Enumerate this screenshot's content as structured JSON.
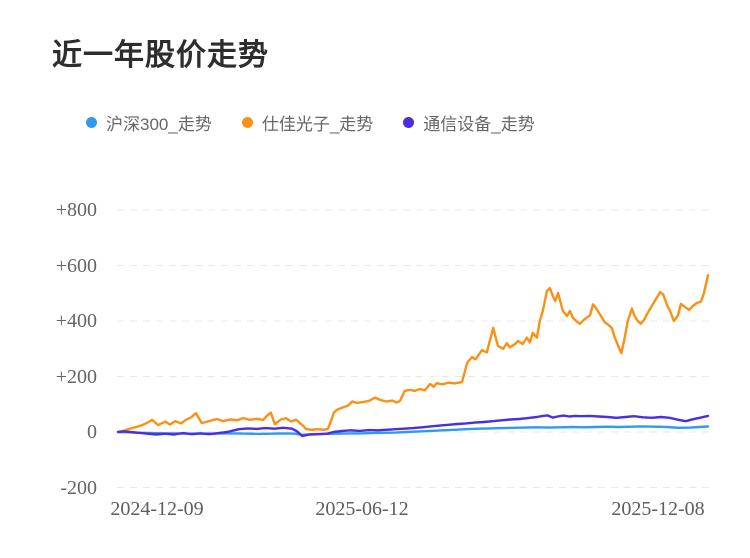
{
  "title": "近一年股价走势",
  "axes": {
    "y_ticks": [
      "+800",
      "+600",
      "+400",
      "+200",
      "0",
      "-200"
    ],
    "y_values": [
      800,
      600,
      400,
      200,
      0,
      -200
    ],
    "x_ticks": [
      "2024-12-09",
      "2025-06-12",
      "2025-12-08"
    ]
  },
  "colors": {
    "grid": "#e8e8e8",
    "background": "#ffffff",
    "title_text": "#2d2d2d",
    "legend_text": "#666666",
    "axis_text": "#646464"
  },
  "chart_data": {
    "type": "line",
    "title": "近一年股价走势",
    "ylim": [
      -200,
      800
    ],
    "grid": "dashed-horizontal",
    "legend_position": "top-left",
    "x_tick_labels": [
      "2024-12-09",
      "2025-06-12",
      "2025-12-08"
    ],
    "x_range_note": "x is fraction of time axis from 2024-12-09 (0) to 2025-12-08 (1)",
    "unit": "percent change",
    "series": [
      {
        "name": "沪深300_走势",
        "color": "#2f9bf0",
        "points": [
          [
            0,
            0
          ],
          [
            0.02,
            -1
          ],
          [
            0.04,
            -3
          ],
          [
            0.06,
            -4
          ],
          [
            0.08,
            -5
          ],
          [
            0.1,
            -5
          ],
          [
            0.12,
            -6
          ],
          [
            0.14,
            -5
          ],
          [
            0.16,
            -6
          ],
          [
            0.18,
            -5
          ],
          [
            0.2,
            -5
          ],
          [
            0.22,
            -6
          ],
          [
            0.24,
            -7
          ],
          [
            0.26,
            -6
          ],
          [
            0.28,
            -5
          ],
          [
            0.3,
            -6
          ],
          [
            0.312,
            -10
          ],
          [
            0.33,
            -8
          ],
          [
            0.35,
            -7
          ],
          [
            0.37,
            -6
          ],
          [
            0.39,
            -5
          ],
          [
            0.41,
            -5
          ],
          [
            0.43,
            -4
          ],
          [
            0.45,
            -3
          ],
          [
            0.47,
            -2
          ],
          [
            0.49,
            0
          ],
          [
            0.51,
            2
          ],
          [
            0.53,
            4
          ],
          [
            0.55,
            6
          ],
          [
            0.57,
            8
          ],
          [
            0.59,
            10
          ],
          [
            0.61,
            12
          ],
          [
            0.63,
            13
          ],
          [
            0.65,
            14
          ],
          [
            0.67,
            15
          ],
          [
            0.69,
            16
          ],
          [
            0.71,
            17
          ],
          [
            0.73,
            16
          ],
          [
            0.75,
            17
          ],
          [
            0.77,
            18
          ],
          [
            0.79,
            17
          ],
          [
            0.81,
            18
          ],
          [
            0.83,
            19
          ],
          [
            0.85,
            18
          ],
          [
            0.87,
            19
          ],
          [
            0.89,
            20
          ],
          [
            0.91,
            19
          ],
          [
            0.93,
            18
          ],
          [
            0.95,
            15
          ],
          [
            0.97,
            16
          ],
          [
            0.985,
            18
          ],
          [
            1,
            20
          ]
        ]
      },
      {
        "name": "仕佳光子_走势",
        "color": "#fb9016",
        "points": [
          [
            0,
            0
          ],
          [
            0.01,
            5
          ],
          [
            0.02,
            12
          ],
          [
            0.031,
            18
          ],
          [
            0.041,
            25
          ],
          [
            0.051,
            35
          ],
          [
            0.058,
            44
          ],
          [
            0.068,
            25
          ],
          [
            0.08,
            37
          ],
          [
            0.088,
            27
          ],
          [
            0.097,
            39
          ],
          [
            0.107,
            31
          ],
          [
            0.115,
            44
          ],
          [
            0.124,
            53
          ],
          [
            0.132,
            68
          ],
          [
            0.142,
            32
          ],
          [
            0.156,
            40
          ],
          [
            0.168,
            47
          ],
          [
            0.178,
            39
          ],
          [
            0.19,
            45
          ],
          [
            0.202,
            42
          ],
          [
            0.212,
            50
          ],
          [
            0.224,
            44
          ],
          [
            0.236,
            48
          ],
          [
            0.246,
            43
          ],
          [
            0.254,
            62
          ],
          [
            0.259,
            70
          ],
          [
            0.266,
            28
          ],
          [
            0.276,
            45
          ],
          [
            0.285,
            50
          ],
          [
            0.293,
            38
          ],
          [
            0.302,
            44
          ],
          [
            0.308,
            33
          ],
          [
            0.314,
            22
          ],
          [
            0.319,
            10
          ],
          [
            0.329,
            8
          ],
          [
            0.339,
            10
          ],
          [
            0.349,
            8
          ],
          [
            0.356,
            12
          ],
          [
            0.361,
            40
          ],
          [
            0.366,
            70
          ],
          [
            0.371,
            80
          ],
          [
            0.38,
            88
          ],
          [
            0.39,
            95
          ],
          [
            0.397,
            110
          ],
          [
            0.405,
            105
          ],
          [
            0.415,
            108
          ],
          [
            0.425,
            112
          ],
          [
            0.436,
            124
          ],
          [
            0.445,
            115
          ],
          [
            0.455,
            110
          ],
          [
            0.465,
            113
          ],
          [
            0.472,
            106
          ],
          [
            0.478,
            112
          ],
          [
            0.486,
            148
          ],
          [
            0.495,
            152
          ],
          [
            0.503,
            148
          ],
          [
            0.512,
            155
          ],
          [
            0.52,
            150
          ],
          [
            0.529,
            173
          ],
          [
            0.535,
            163
          ],
          [
            0.54,
            176
          ],
          [
            0.55,
            172
          ],
          [
            0.56,
            178
          ],
          [
            0.57,
            175
          ],
          [
            0.583,
            180
          ],
          [
            0.592,
            250
          ],
          [
            0.6,
            270
          ],
          [
            0.606,
            262
          ],
          [
            0.617,
            295
          ],
          [
            0.625,
            287
          ],
          [
            0.636,
            375
          ],
          [
            0.644,
            310
          ],
          [
            0.653,
            300
          ],
          [
            0.659,
            320
          ],
          [
            0.664,
            305
          ],
          [
            0.673,
            317
          ],
          [
            0.678,
            328
          ],
          [
            0.686,
            317
          ],
          [
            0.693,
            340
          ],
          [
            0.698,
            323
          ],
          [
            0.703,
            357
          ],
          [
            0.71,
            340
          ],
          [
            0.715,
            400
          ],
          [
            0.72,
            436
          ],
          [
            0.727,
            508
          ],
          [
            0.732,
            519
          ],
          [
            0.737,
            490
          ],
          [
            0.741,
            472
          ],
          [
            0.746,
            501
          ],
          [
            0.754,
            436
          ],
          [
            0.761,
            418
          ],
          [
            0.766,
            436
          ],
          [
            0.771,
            412
          ],
          [
            0.78,
            394
          ],
          [
            0.783,
            390
          ],
          [
            0.79,
            405
          ],
          [
            0.8,
            420
          ],
          [
            0.805,
            460
          ],
          [
            0.81,
            447
          ],
          [
            0.818,
            420
          ],
          [
            0.825,
            395
          ],
          [
            0.83,
            388
          ],
          [
            0.837,
            375
          ],
          [
            0.842,
            340
          ],
          [
            0.853,
            284
          ],
          [
            0.858,
            330
          ],
          [
            0.864,
            400
          ],
          [
            0.868,
            425
          ],
          [
            0.871,
            445
          ],
          [
            0.875,
            420
          ],
          [
            0.881,
            400
          ],
          [
            0.886,
            390
          ],
          [
            0.892,
            405
          ],
          [
            0.898,
            430
          ],
          [
            0.905,
            455
          ],
          [
            0.912,
            480
          ],
          [
            0.919,
            504
          ],
          [
            0.924,
            495
          ],
          [
            0.931,
            455
          ],
          [
            0.936,
            435
          ],
          [
            0.942,
            400
          ],
          [
            0.949,
            420
          ],
          [
            0.954,
            462
          ],
          [
            0.961,
            450
          ],
          [
            0.968,
            440
          ],
          [
            0.975,
            455
          ],
          [
            0.981,
            465
          ],
          [
            0.988,
            470
          ],
          [
            0.993,
            500
          ],
          [
            1,
            565
          ]
        ]
      },
      {
        "name": "通信设备_走势",
        "color": "#4a2fe0",
        "points": [
          [
            0,
            0
          ],
          [
            0.01,
            2
          ],
          [
            0.02,
            0
          ],
          [
            0.035,
            -3
          ],
          [
            0.05,
            -6
          ],
          [
            0.065,
            -9
          ],
          [
            0.08,
            -6
          ],
          [
            0.095,
            -9
          ],
          [
            0.11,
            -4
          ],
          [
            0.125,
            -8
          ],
          [
            0.14,
            -5
          ],
          [
            0.155,
            -8
          ],
          [
            0.17,
            -4
          ],
          [
            0.185,
            0
          ],
          [
            0.195,
            5
          ],
          [
            0.205,
            10
          ],
          [
            0.22,
            13
          ],
          [
            0.235,
            11
          ],
          [
            0.25,
            14
          ],
          [
            0.265,
            12
          ],
          [
            0.28,
            15
          ],
          [
            0.295,
            12
          ],
          [
            0.303,
            3
          ],
          [
            0.312,
            -14
          ],
          [
            0.325,
            -9
          ],
          [
            0.34,
            -8
          ],
          [
            0.355,
            -6
          ],
          [
            0.365,
            0
          ],
          [
            0.38,
            4
          ],
          [
            0.395,
            6
          ],
          [
            0.41,
            4
          ],
          [
            0.425,
            7
          ],
          [
            0.44,
            6
          ],
          [
            0.455,
            8
          ],
          [
            0.47,
            10
          ],
          [
            0.485,
            12
          ],
          [
            0.5,
            14
          ],
          [
            0.515,
            17
          ],
          [
            0.53,
            20
          ],
          [
            0.545,
            23
          ],
          [
            0.56,
            26
          ],
          [
            0.575,
            29
          ],
          [
            0.59,
            31
          ],
          [
            0.605,
            34
          ],
          [
            0.62,
            36
          ],
          [
            0.635,
            39
          ],
          [
            0.65,
            42
          ],
          [
            0.665,
            45
          ],
          [
            0.68,
            47
          ],
          [
            0.695,
            50
          ],
          [
            0.71,
            54
          ],
          [
            0.72,
            58
          ],
          [
            0.728,
            60
          ],
          [
            0.737,
            52
          ],
          [
            0.745,
            56
          ],
          [
            0.755,
            59
          ],
          [
            0.765,
            56
          ],
          [
            0.775,
            58
          ],
          [
            0.785,
            57
          ],
          [
            0.8,
            58
          ],
          [
            0.815,
            56
          ],
          [
            0.83,
            54
          ],
          [
            0.845,
            51
          ],
          [
            0.86,
            54
          ],
          [
            0.875,
            57
          ],
          [
            0.89,
            53
          ],
          [
            0.905,
            51
          ],
          [
            0.92,
            54
          ],
          [
            0.935,
            51
          ],
          [
            0.95,
            44
          ],
          [
            0.962,
            39
          ],
          [
            0.975,
            46
          ],
          [
            0.988,
            52
          ],
          [
            1,
            58
          ]
        ]
      }
    ]
  }
}
